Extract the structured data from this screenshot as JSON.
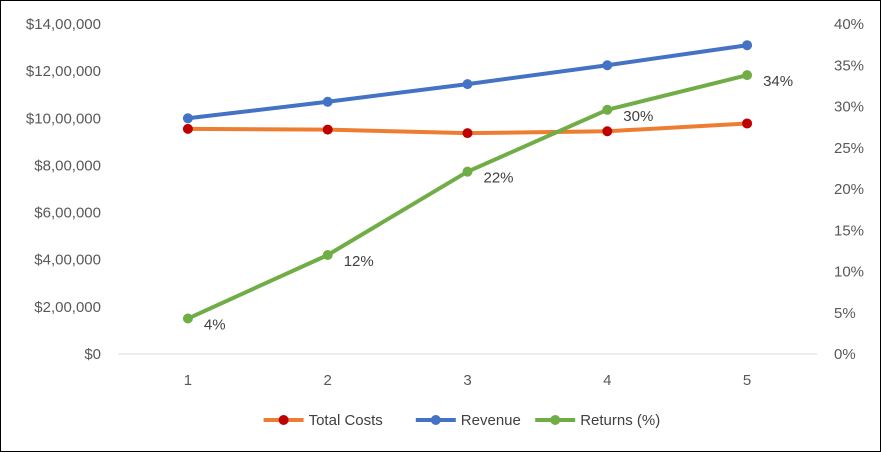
{
  "chart_data": {
    "type": "line",
    "title": "",
    "x": [
      "1",
      "2",
      "3",
      "4",
      "5"
    ],
    "y_left": {
      "ylim": [
        0,
        1400000
      ],
      "ticks": [
        0,
        200000,
        400000,
        600000,
        800000,
        1000000,
        1200000,
        1400000
      ],
      "tick_labels": [
        "$0",
        "$2,00,000",
        "$4,00,000",
        "$6,00,000",
        "$8,00,000",
        "$10,00,000",
        "$12,00,000",
        "$14,00,000"
      ]
    },
    "y_right": {
      "ylim": [
        0,
        40
      ],
      "ticks": [
        0,
        5,
        10,
        15,
        20,
        25,
        30,
        35,
        40
      ],
      "tick_labels": [
        "0%",
        "5%",
        "10%",
        "15%",
        "20%",
        "25%",
        "30%",
        "35%",
        "40%"
      ]
    },
    "series": [
      {
        "name": "Total Costs",
        "axis": "left",
        "values": [
          955000,
          952000,
          937000,
          945000,
          978000
        ],
        "line_color": "#ED7D31",
        "marker_color": "#C00000"
      },
      {
        "name": "Revenue",
        "axis": "left",
        "values": [
          1000000,
          1070000,
          1145000,
          1225000,
          1310000
        ],
        "line_color": "#4472C4",
        "marker_color": "#4472C4"
      },
      {
        "name": "Returns (%)",
        "axis": "right",
        "values": [
          4.3,
          12.0,
          22.1,
          29.6,
          33.8
        ],
        "data_labels": [
          "4%",
          "12%",
          "22%",
          "30%",
          "34%"
        ],
        "line_color": "#70AD47",
        "marker_color": "#70AD47"
      }
    ],
    "legend_position": "bottom",
    "grid": false
  }
}
